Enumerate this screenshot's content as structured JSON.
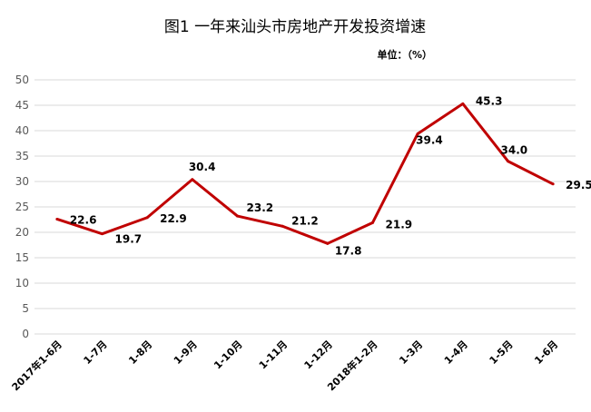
{
  "chart_data": {
    "type": "line",
    "title": "图1  一年来汕头市房地产开发投资增速",
    "unit_label": "单位：（%）",
    "categories": [
      "2017年1-6月",
      "1-7月",
      "1-8月",
      "1-9月",
      "1-10月",
      "1-11月",
      "1-12月",
      "2018年1-2月",
      "1-3月",
      "1-4月",
      "1-5月",
      "1-6月"
    ],
    "series": [
      {
        "values": [
          22.6,
          19.7,
          22.9,
          30.4,
          23.2,
          21.2,
          17.8,
          21.9,
          39.4,
          45.3,
          34.0,
          29.5
        ],
        "color": "#c00000"
      }
    ],
    "data_labels": [
      "22.6",
      "19.7",
      "22.9",
      "30.4",
      "23.2",
      "21.2",
      "17.8",
      "21.9",
      "39.4",
      "45.3",
      "34.0",
      "29.5"
    ],
    "yticks": [
      "0",
      "5",
      "10",
      "15",
      "20",
      "25",
      "30",
      "35",
      "40",
      "45",
      "50"
    ],
    "ylim": [
      0,
      50
    ],
    "grid": true,
    "legend": "none",
    "colors": {
      "line": "#c00000",
      "grid": "#d9d9d9",
      "axis_text": "#595959"
    }
  }
}
